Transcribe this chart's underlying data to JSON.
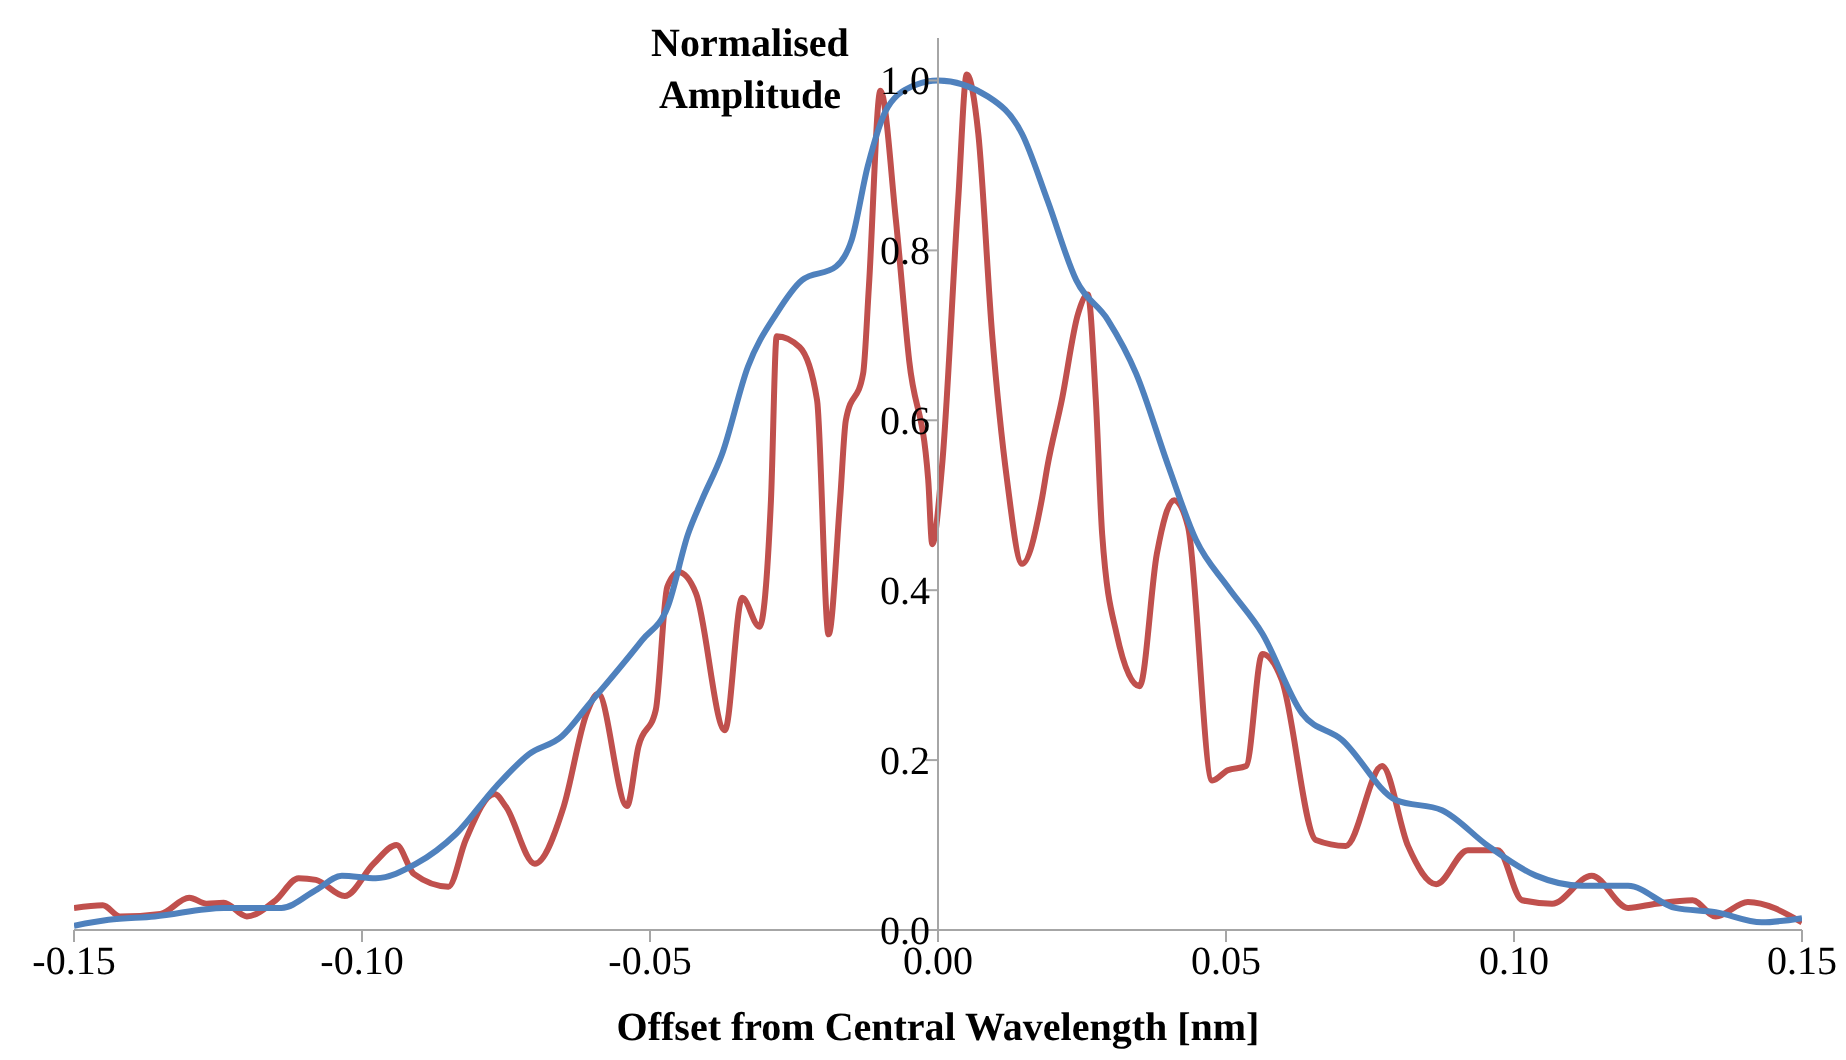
{
  "chart_data": {
    "type": "line",
    "xlabel": "Offset from Central Wavelength [nm]",
    "ylabel": "Normalised Amplitude",
    "xlim": [
      -0.15,
      0.15
    ],
    "ylim": [
      0,
      1.05
    ],
    "xticks": [
      -0.15,
      {
        "value": -0.1,
        "label": "-0.10"
      },
      {
        "value": -0.05,
        "label": "-0.05"
      },
      {
        "value": 0,
        "label": "0.00"
      },
      0.05,
      {
        "value": 0.1,
        "label": "0.10"
      },
      0.15
    ],
    "yticks": [
      {
        "value": 0,
        "label": "0.0"
      },
      0.2,
      0.4,
      0.6,
      0.8,
      {
        "value": 1,
        "label": "1.0"
      }
    ],
    "grid": false,
    "legend": false,
    "marker": "none",
    "line_style": "solid",
    "series": [
      {
        "color": "#c0504d",
        "x": [
          -0.15,
          -0.145,
          -0.142,
          -0.135,
          -0.13,
          -0.127,
          -0.124,
          -0.12,
          -0.115,
          -0.111,
          -0.108,
          -0.103,
          -0.098,
          -0.094,
          -0.091,
          -0.085,
          -0.082,
          -0.077,
          -0.075,
          -0.07,
          -0.065,
          -0.061,
          -0.059,
          -0.054,
          -0.052,
          -0.049,
          -0.047,
          -0.045,
          -0.042,
          -0.037,
          -0.034,
          -0.031,
          -0.029,
          -0.028,
          -0.024,
          -0.021,
          -0.019,
          -0.017,
          -0.016,
          -0.013,
          -0.012,
          -0.01,
          -0.0073,
          -0.005,
          -0.0017,
          -0.001,
          0.0007,
          0.0035,
          0.005,
          0.007,
          0.0094,
          0.012,
          0.0146,
          0.018,
          0.019,
          0.0215,
          0.0243,
          0.026,
          0.0274,
          0.0285,
          0.031,
          0.035,
          0.038,
          0.041,
          0.0434,
          0.0476,
          0.0503,
          0.0535,
          0.0563,
          0.0597,
          0.0656,
          0.0708,
          0.0771,
          0.0816,
          0.0865,
          0.092,
          0.0972,
          0.1014,
          0.1066,
          0.1135,
          0.1198,
          0.1247,
          0.131,
          0.135,
          0.1406,
          0.15
        ],
        "values": [
          0.026,
          0.029,
          0.016,
          0.019,
          0.038,
          0.031,
          0.032,
          0.016,
          0.035,
          0.061,
          0.059,
          0.04,
          0.078,
          0.1,
          0.066,
          0.051,
          0.106,
          0.16,
          0.145,
          0.078,
          0.145,
          0.255,
          0.278,
          0.146,
          0.216,
          0.259,
          0.404,
          0.421,
          0.396,
          0.235,
          0.391,
          0.357,
          0.506,
          0.699,
          0.686,
          0.624,
          0.348,
          0.506,
          0.6,
          0.655,
          0.757,
          0.988,
          0.835,
          0.67,
          0.53,
          0.454,
          0.546,
          0.859,
          1.007,
          0.937,
          0.701,
          0.529,
          0.431,
          0.506,
          0.546,
          0.624,
          0.725,
          0.748,
          0.624,
          0.466,
          0.349,
          0.287,
          0.443,
          0.506,
          0.475,
          0.176,
          0.188,
          0.193,
          0.325,
          0.294,
          0.106,
          0.099,
          0.193,
          0.099,
          0.054,
          0.094,
          0.094,
          0.035,
          0.031,
          0.064,
          0.026,
          0.031,
          0.035,
          0.016,
          0.033,
          0.009
        ]
      },
      {
        "color": "#4f81bd",
        "x": [
          -0.15,
          -0.144,
          -0.136,
          -0.124,
          -0.114,
          -0.108,
          -0.1035,
          -0.0976,
          -0.0906,
          -0.0837,
          -0.0767,
          -0.071,
          -0.0653,
          -0.0608,
          -0.0514,
          -0.0469,
          -0.0434,
          -0.041,
          -0.0375,
          -0.033,
          -0.0281,
          -0.0236,
          -0.0177,
          -0.015,
          -0.0122,
          -0.0087,
          -0.0038,
          0,
          0.0087,
          0.0146,
          0.019,
          0.024,
          0.0295,
          0.0344,
          0.04,
          0.0448,
          0.0503,
          0.0563,
          0.0632,
          0.0701,
          0.0795,
          0.0875,
          0.0955,
          0.1038,
          0.1118,
          0.1198,
          0.128,
          0.135,
          0.143,
          0.15
        ],
        "values": [
          0.005,
          0.012,
          0.016,
          0.026,
          0.026,
          0.047,
          0.064,
          0.061,
          0.078,
          0.113,
          0.169,
          0.207,
          0.228,
          0.264,
          0.341,
          0.381,
          0.466,
          0.506,
          0.56,
          0.663,
          0.725,
          0.765,
          0.781,
          0.812,
          0.899,
          0.969,
          0.995,
          1.0,
          0.981,
          0.937,
          0.859,
          0.765,
          0.718,
          0.655,
          0.546,
          0.459,
          0.404,
          0.349,
          0.255,
          0.224,
          0.153,
          0.141,
          0.099,
          0.064,
          0.052,
          0.052,
          0.026,
          0.021,
          0.009,
          0.014
        ]
      }
    ]
  }
}
